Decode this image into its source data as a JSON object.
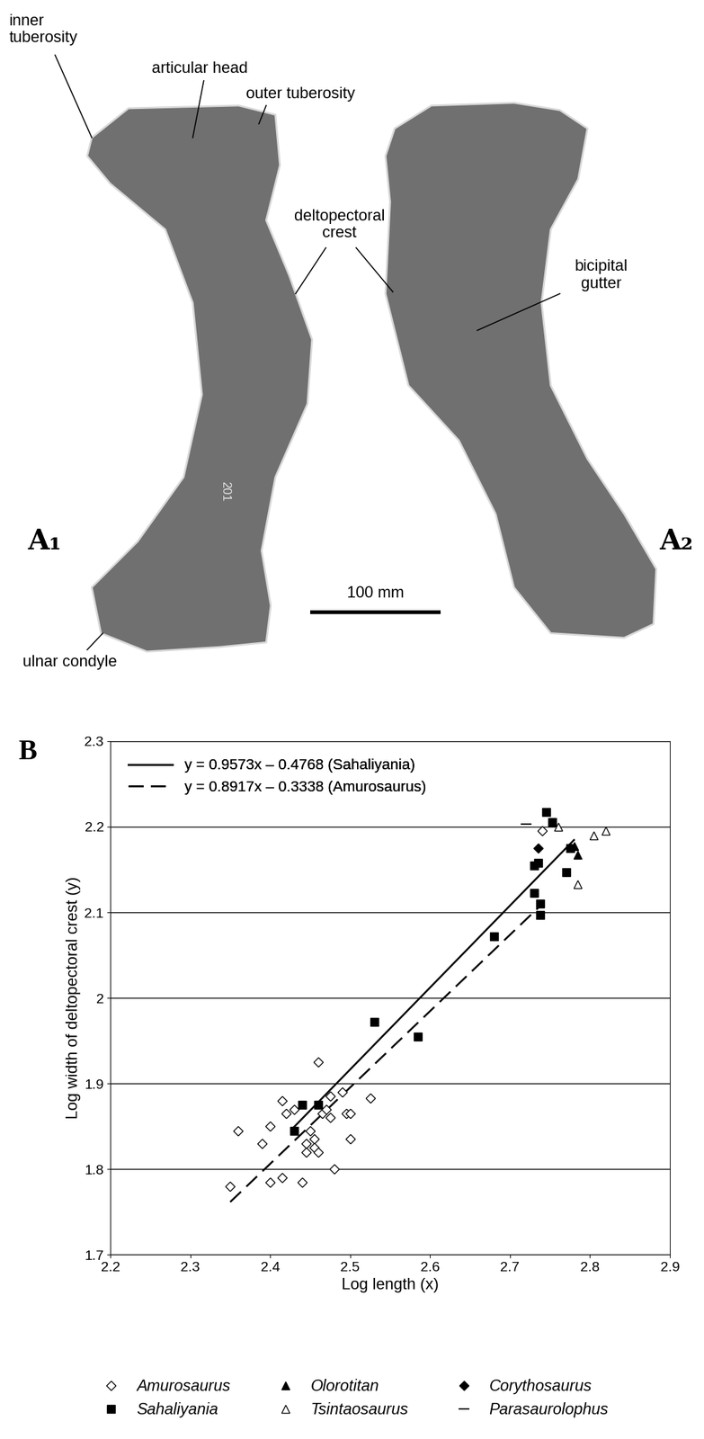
{
  "photo": {
    "labels": {
      "inner_tuberosity": "inner\ntuberosity",
      "articular_head": "articular head",
      "outer_tuberosity": "outer tuberosity",
      "deltopectoral_crest": "deltopectoral\ncrest",
      "bicipital_gutter": "bicipital\ngutter",
      "ulnar_condyle": "ulnar condyle",
      "specimen_number": "201"
    },
    "panel_labels": [
      "A₁",
      "A₂"
    ],
    "scale_bar": "100 mm"
  },
  "chart_data": {
    "type": "scatter",
    "panel_label": "B",
    "x_label": "Log length (x)",
    "y_label": "Log width of deltopectoral crest (y)",
    "xlim": [
      2.2,
      2.9
    ],
    "ylim": [
      1.7,
      2.3
    ],
    "xticks": [
      2.2,
      2.3,
      2.4,
      2.5,
      2.6,
      2.7,
      2.8,
      2.9
    ],
    "yticks": [
      1.7,
      1.8,
      1.9,
      2,
      2.1,
      2.2,
      2.3
    ],
    "grid": "y",
    "legend": "upper left",
    "regressions": [
      {
        "name": "y = 0.9573x – 0.4768 (Sahaliyania)",
        "slope": 0.9573,
        "intercept": -0.4768,
        "x_range": [
          2.43,
          2.78
        ],
        "line_style": "solid",
        "color": "#000000"
      },
      {
        "name": "y = 0.8917x – 0.3338 (Amurosaurus)",
        "slope": 0.8917,
        "intercept": -0.3338,
        "x_range": [
          2.35,
          2.74
        ],
        "line_style": "dashed",
        "color": "#000000"
      }
    ],
    "series": [
      {
        "name": "Amurosaurus",
        "marker": "open_diamond",
        "color": "#000000",
        "x": [
          2.35,
          2.36,
          2.39,
          2.4,
          2.4,
          2.415,
          2.415,
          2.42,
          2.43,
          2.44,
          2.445,
          2.445,
          2.45,
          2.455,
          2.455,
          2.46,
          2.46,
          2.465,
          2.47,
          2.475,
          2.475,
          2.48,
          2.49,
          2.495,
          2.5,
          2.5,
          2.525,
          2.74
        ],
        "y": [
          1.78,
          1.845,
          1.83,
          1.85,
          1.785,
          1.88,
          1.79,
          1.865,
          1.87,
          1.785,
          1.83,
          1.82,
          1.845,
          1.835,
          1.825,
          1.925,
          1.82,
          1.865,
          1.87,
          1.885,
          1.86,
          1.8,
          1.89,
          1.865,
          1.865,
          1.835,
          1.883,
          2.195
        ]
      },
      {
        "name": "Sahaliyania",
        "marker": "square",
        "color": "#000000",
        "x": [
          2.43,
          2.44,
          2.46,
          2.53,
          2.585,
          2.68,
          2.73,
          2.735,
          2.73,
          2.738,
          2.738,
          2.745,
          2.753,
          2.77,
          2.775
        ],
        "y": [
          1.845,
          1.875,
          1.875,
          1.972,
          1.955,
          2.072,
          2.155,
          2.158,
          2.123,
          2.11,
          2.097,
          2.217,
          2.205,
          2.147,
          2.175
        ]
      },
      {
        "name": "Olorotitan",
        "marker": "triangle",
        "color": "#000000",
        "x": [
          2.78,
          2.785
        ],
        "y": [
          2.177,
          2.167
        ]
      },
      {
        "name": "Tsintaosaurus",
        "marker": "open_triangle",
        "color": "#000000",
        "x": [
          2.76,
          2.785,
          2.805,
          2.82
        ],
        "y": [
          2.2,
          2.133,
          2.19,
          2.195
        ]
      },
      {
        "name": "Corythosaurus",
        "marker": "diamond",
        "color": "#000000",
        "x": [
          2.735
        ],
        "y": [
          2.175
        ]
      },
      {
        "name": "Parasaurolophus",
        "marker": "dash",
        "color": "#000000",
        "x": [
          2.72
        ],
        "y": [
          2.203
        ]
      }
    ]
  }
}
